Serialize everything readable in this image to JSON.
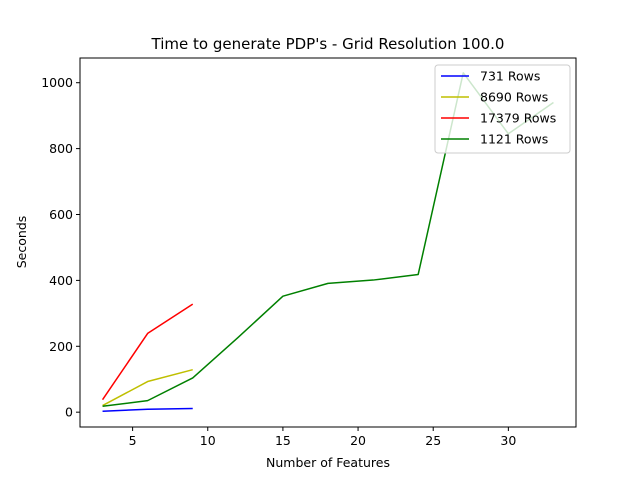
{
  "chart_data": {
    "type": "line",
    "title": "Time to generate PDP's - Grid Resolution 100.0",
    "xlabel": "Number of Features",
    "ylabel": "Seconds",
    "xlim": [
      1.5,
      34.5
    ],
    "ylim": [
      -45,
      1075
    ],
    "xticks": [
      5,
      10,
      15,
      20,
      25,
      30
    ],
    "yticks": [
      0,
      200,
      400,
      600,
      800,
      1000
    ],
    "legend_position": "top-right",
    "series": [
      {
        "name": "731 Rows",
        "color": "#0000ff",
        "x": [
          3,
          6,
          9
        ],
        "y": [
          3,
          9,
          11
        ]
      },
      {
        "name": "8690 Rows",
        "color": "#bfbf00",
        "x": [
          3,
          6,
          9
        ],
        "y": [
          20,
          93,
          129
        ]
      },
      {
        "name": "17379 Rows",
        "color": "#ff0000",
        "x": [
          3,
          6,
          9
        ],
        "y": [
          38,
          239,
          328
        ]
      },
      {
        "name": "1121 Rows",
        "color": "#008000",
        "x": [
          3,
          6,
          9,
          12,
          15,
          18,
          21,
          24,
          27,
          30,
          33
        ],
        "y": [
          18,
          35,
          104,
          226,
          352,
          391,
          401,
          418,
          1030,
          845,
          940
        ]
      }
    ]
  }
}
